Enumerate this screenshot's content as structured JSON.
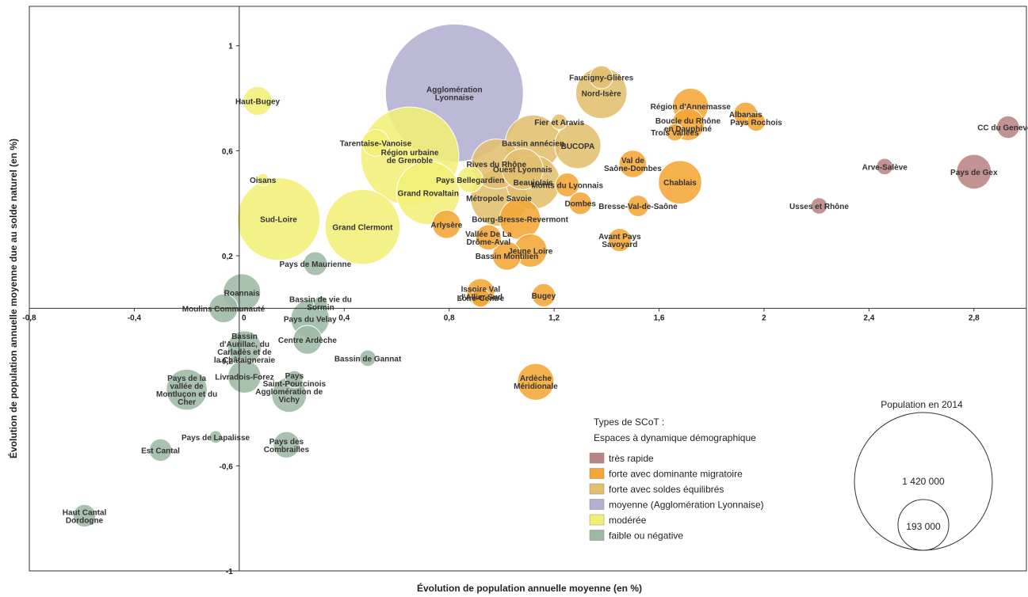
{
  "chart_data": {
    "type": "scatter",
    "subtype": "bubble",
    "xlabel": "Évolution de population annuelle moyenne (en %)",
    "ylabel": "Évolution de population annuelle moyenne due au solde naturel (en %)",
    "xlim": [
      -0.8,
      3.0
    ],
    "ylim": [
      -1.0,
      1.15
    ],
    "x_ticks": [
      {
        "v": -0.8,
        "t": "-0,8"
      },
      {
        "v": -0.4,
        "t": "-0,4"
      },
      {
        "v": 0,
        "t": "0"
      },
      {
        "v": 0.4,
        "t": "0,4"
      },
      {
        "v": 0.8,
        "t": "0,8"
      },
      {
        "v": 1.2,
        "t": "1,2"
      },
      {
        "v": 1.6,
        "t": "1,6"
      },
      {
        "v": 2,
        "t": "2"
      },
      {
        "v": 2.4,
        "t": "2,4"
      },
      {
        "v": 2.8,
        "t": "2,8"
      }
    ],
    "y_ticks": [
      {
        "v": 1,
        "t": "1"
      },
      {
        "v": 0.6,
        "t": "0,6"
      },
      {
        "v": 0.2,
        "t": "0,2"
      },
      {
        "v": -0.2,
        "t": "-0,2"
      },
      {
        "v": -0.6,
        "t": "-0,6"
      },
      {
        "v": -1,
        "t": "-1"
      }
    ],
    "grid": false,
    "legend_position": "bottom-right",
    "categories": [
      {
        "key": "tres_rapide",
        "label": "très rapide",
        "color": "#b98484"
      },
      {
        "key": "migratoire",
        "label": "forte avec dominante migratoire",
        "color": "#f4a636"
      },
      {
        "key": "equilibres",
        "label": "forte avec soldes équilibrés",
        "color": "#e3bf6e"
      },
      {
        "key": "moyenne",
        "label": "moyenne (Agglomération Lyonnaise)",
        "color": "#b2afcf"
      },
      {
        "key": "moderee",
        "label": "modérée",
        "color": "#f2ef78"
      },
      {
        "key": "faible",
        "label": "faible ou négative",
        "color": "#9db9a5"
      }
    ],
    "points": [
      {
        "name": "Agglomération Lyonnaise",
        "x": 0.82,
        "y": 0.82,
        "pop": 1420000,
        "cat": "moyenne"
      },
      {
        "name": "Région urbaine de Grenoble",
        "x": 0.65,
        "y": 0.58,
        "pop": 720000,
        "cat": "moderee"
      },
      {
        "name": "Grand Clermont",
        "x": 0.47,
        "y": 0.31,
        "pop": 420000,
        "cat": "moderee"
      },
      {
        "name": "Sud-Loire",
        "x": 0.15,
        "y": 0.34,
        "pop": 510000,
        "cat": "moderee"
      },
      {
        "name": "Grand Rovaltain",
        "x": 0.72,
        "y": 0.44,
        "pop": 300000,
        "cat": "moderee"
      },
      {
        "name": "Haut-Bugey",
        "x": 0.07,
        "y": 0.79,
        "pop": 62000,
        "cat": "moderee"
      },
      {
        "name": "Tarentaise-Vanoise",
        "x": 0.52,
        "y": 0.63,
        "pop": 54000,
        "cat": "moderee"
      },
      {
        "name": "Oisans",
        "x": 0.09,
        "y": 0.49,
        "pop": 11000,
        "cat": "moderee"
      },
      {
        "name": "Pays Bellegardien",
        "x": 0.88,
        "y": 0.49,
        "pop": 50000,
        "cat": "moderee"
      },
      {
        "name": "Faucigny-Glières",
        "x": 1.38,
        "y": 0.88,
        "pop": 40000,
        "cat": "equilibres"
      },
      {
        "name": "Nord-Isère",
        "x": 1.38,
        "y": 0.82,
        "pop": 195000,
        "cat": "equilibres"
      },
      {
        "name": "Bassin annécien",
        "x": 1.12,
        "y": 0.63,
        "pop": 230000,
        "cat": "equilibres"
      },
      {
        "name": "BUCOPA",
        "x": 1.29,
        "y": 0.62,
        "pop": 160000,
        "cat": "equilibres"
      },
      {
        "name": "Ouest Lyonnais",
        "x": 1.08,
        "y": 0.53,
        "pop": 125000,
        "cat": "equilibres"
      },
      {
        "name": "Rives du Rhône",
        "x": 0.98,
        "y": 0.55,
        "pop": 185000,
        "cat": "equilibres"
      },
      {
        "name": "Beaujolais",
        "x": 1.12,
        "y": 0.48,
        "pop": 215000,
        "cat": "equilibres"
      },
      {
        "name": "Métropole Savoie",
        "x": 0.99,
        "y": 0.42,
        "pop": 240000,
        "cat": "equilibres"
      },
      {
        "name": "Fier et Aravis",
        "x": 1.22,
        "y": 0.71,
        "pop": 18000,
        "cat": "equilibres"
      },
      {
        "name": "Région d'Annemasse",
        "x": 1.72,
        "y": 0.77,
        "pop": 95000,
        "cat": "migratoire"
      },
      {
        "name": "Boucle du Rhône en Dauphiné",
        "x": 1.71,
        "y": 0.7,
        "pop": 78000,
        "cat": "migratoire"
      },
      {
        "name": "Albanais",
        "x": 1.93,
        "y": 0.74,
        "pop": 42000,
        "cat": "migratoire"
      },
      {
        "name": "Pays Rochois",
        "x": 1.97,
        "y": 0.71,
        "pop": 26000,
        "cat": "migratoire"
      },
      {
        "name": "Trois Vallées",
        "x": 1.66,
        "y": 0.67,
        "pop": 22000,
        "cat": "migratoire"
      },
      {
        "name": "Val de Saône-Dombes",
        "x": 1.5,
        "y": 0.55,
        "pop": 56000,
        "cat": "migratoire"
      },
      {
        "name": "Chablais",
        "x": 1.68,
        "y": 0.48,
        "pop": 140000,
        "cat": "migratoire"
      },
      {
        "name": "Monts du Lyonnais",
        "x": 1.25,
        "y": 0.47,
        "pop": 42000,
        "cat": "migratoire"
      },
      {
        "name": "Dombes",
        "x": 1.3,
        "y": 0.4,
        "pop": 38000,
        "cat": "migratoire"
      },
      {
        "name": "Bresse-Val-de-Saône",
        "x": 1.52,
        "y": 0.39,
        "pop": 34000,
        "cat": "migratoire"
      },
      {
        "name": "Avant Pays Savoyard",
        "x": 1.45,
        "y": 0.26,
        "pop": 40000,
        "cat": "migratoire"
      },
      {
        "name": "Bourg-Bresse-Revermont",
        "x": 1.07,
        "y": 0.34,
        "pop": 125000,
        "cat": "migratoire"
      },
      {
        "name": "Arlysère",
        "x": 0.79,
        "y": 0.32,
        "pop": 60000,
        "cat": "migratoire"
      },
      {
        "name": "Vallée De La Drôme-Aval",
        "x": 0.95,
        "y": 0.27,
        "pop": 48000,
        "cat": "migratoire"
      },
      {
        "name": "Jeune Loire",
        "x": 1.11,
        "y": 0.22,
        "pop": 82000,
        "cat": "migratoire"
      },
      {
        "name": "Bassin Montilien",
        "x": 1.02,
        "y": 0.2,
        "pop": 62000,
        "cat": "migratoire"
      },
      {
        "name": "Issoire Val d'Allier Sud",
        "x": 0.92,
        "y": 0.06,
        "pop": 58000,
        "cat": "migratoire"
      },
      {
        "name": "Loire-Centre",
        "x": 0.92,
        "y": 0.04,
        "pop": 26000,
        "cat": "migratoire"
      },
      {
        "name": "Bugey",
        "x": 1.16,
        "y": 0.05,
        "pop": 40000,
        "cat": "migratoire"
      },
      {
        "name": "Ardèche Méridionale",
        "x": 1.13,
        "y": -0.28,
        "pop": 100000,
        "cat": "migratoire"
      },
      {
        "name": "CC du Genevois",
        "x": 2.93,
        "y": 0.69,
        "pop": 38000,
        "cat": "tres_rapide"
      },
      {
        "name": "Pays de Gex",
        "x": 2.8,
        "y": 0.52,
        "pop": 90000,
        "cat": "tres_rapide"
      },
      {
        "name": "Arve-Salève",
        "x": 2.46,
        "y": 0.54,
        "pop": 20000,
        "cat": "tres_rapide"
      },
      {
        "name": "Usses et Rhône",
        "x": 2.21,
        "y": 0.39,
        "pop": 20000,
        "cat": "tres_rapide"
      },
      {
        "name": "Pays de Maurienne",
        "x": 0.29,
        "y": 0.17,
        "pop": 42000,
        "cat": "faible"
      },
      {
        "name": "Roannais",
        "x": 0.01,
        "y": 0.06,
        "pop": 105000,
        "cat": "faible"
      },
      {
        "name": "Moulins Communauté",
        "x": -0.06,
        "y": 0.0,
        "pop": 62000,
        "cat": "faible"
      },
      {
        "name": "Bassin de vie du Sormin",
        "x": 0.31,
        "y": 0.02,
        "pop": 14000,
        "cat": "faible"
      },
      {
        "name": "Pays du Velay",
        "x": 0.27,
        "y": -0.04,
        "pop": 110000,
        "cat": "faible"
      },
      {
        "name": "Centre Ardèche",
        "x": 0.26,
        "y": -0.12,
        "pop": 62000,
        "cat": "faible"
      },
      {
        "name": "Bassin d'Aurillac, du Carladès et de la Châtaigneraie",
        "x": 0.02,
        "y": -0.15,
        "pop": 85000,
        "cat": "faible"
      },
      {
        "name": "Bassin de Gannat",
        "x": 0.49,
        "y": -0.19,
        "pop": 20000,
        "cat": "faible"
      },
      {
        "name": "Livradois-Forez",
        "x": 0.02,
        "y": -0.26,
        "pop": 82000,
        "cat": "faible"
      },
      {
        "name": "Pays Saint-Pourcinois",
        "x": 0.21,
        "y": -0.27,
        "pop": 22000,
        "cat": "faible"
      },
      {
        "name": "Agglomération de Vichy",
        "x": 0.19,
        "y": -0.33,
        "pop": 90000,
        "cat": "faible"
      },
      {
        "name": "Pays de la vallée de Montluçon et du Cher",
        "x": -0.2,
        "y": -0.31,
        "pop": 125000,
        "cat": "faible"
      },
      {
        "name": "Pays de Lapalisse",
        "x": -0.09,
        "y": -0.49,
        "pop": 12000,
        "cat": "faible"
      },
      {
        "name": "Pays des Combrailles",
        "x": 0.18,
        "y": -0.52,
        "pop": 52000,
        "cat": "faible"
      },
      {
        "name": "Est Cantal",
        "x": -0.3,
        "y": -0.54,
        "pop": 38000,
        "cat": "faible"
      },
      {
        "name": "Haut Cantal Dordogne",
        "x": -0.59,
        "y": -0.79,
        "pop": 38000,
        "cat": "faible"
      }
    ],
    "legend": {
      "title1": "Types de SCoT :",
      "title2": "Espaces à dynamique démographique",
      "size_title": "Population en 2014",
      "size_big_label": "1 420 000",
      "size_small_label": "193 000",
      "size_big_value": 1420000,
      "size_small_value": 193000
    }
  }
}
